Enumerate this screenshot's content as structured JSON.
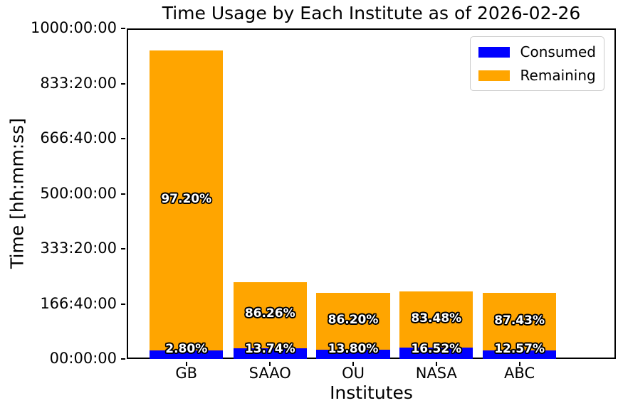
{
  "chart_data": {
    "type": "bar",
    "stacked": true,
    "title": "Time Usage by Each Institute as of 2026-02-26",
    "xlabel": "Institutes",
    "ylabel": "Time [hh:mm:ss]",
    "categories": [
      "GB",
      "SAAO",
      "OU",
      "NASA",
      "ABC"
    ],
    "series": [
      {
        "name": "Consumed",
        "color": "#0000ff",
        "values_hours": [
          26.1,
          32.1,
          27.5,
          33.8,
          25.2
        ],
        "pct_labels": [
          "2.80%",
          "13.74%",
          "13.80%",
          "16.52%",
          "12.57%"
        ]
      },
      {
        "name": "Remaining",
        "color": "#ffa500",
        "values_hours": [
          907.2,
          201.2,
          172.0,
          170.7,
          175.3
        ],
        "pct_labels": [
          "97.20%",
          "86.26%",
          "86.20%",
          "83.48%",
          "87.43%"
        ]
      }
    ],
    "totals_hours": [
      933.3,
      233.3,
      199.5,
      204.5,
      200.5
    ],
    "ylim_hours": [
      0,
      1000
    ],
    "ytick_labels": [
      "00:00:00",
      "166:40:00",
      "333:20:00",
      "500:00:00",
      "666:40:00",
      "833:20:00",
      "1000:00:00"
    ],
    "grid": false,
    "legend": {
      "position": "upper right",
      "entries": [
        "Consumed",
        "Remaining"
      ]
    },
    "label_style": {
      "color": "#ffffff",
      "outline": "#000000",
      "bold": true
    },
    "layout_hints": {
      "bar_centers_frac": [
        0.119,
        0.29,
        0.46,
        0.63,
        0.8
      ],
      "bar_width_frac": 0.15,
      "axes_color": "#000000",
      "background": "#ffffff"
    }
  }
}
